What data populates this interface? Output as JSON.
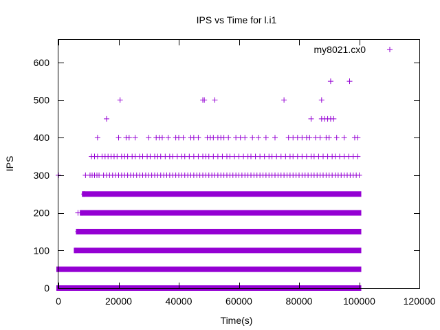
{
  "chart_data": {
    "type": "scatter",
    "title": "IPS vs Time for l.i1",
    "xlabel": "Time(s)",
    "ylabel": "IPS",
    "xlim": [
      0,
      120000
    ],
    "ylim": [
      0,
      660
    ],
    "x_ticks": [
      0,
      20000,
      40000,
      60000,
      80000,
      100000,
      120000
    ],
    "y_ticks": [
      0,
      100,
      200,
      300,
      400,
      500,
      600
    ],
    "legend_position": "top-right",
    "series": [
      {
        "name": "my8021.cx0",
        "color": "#9400d3",
        "marker": "+",
        "dense_bands": [
          {
            "y": 0,
            "x_start": 0,
            "x_end": 100000
          },
          {
            "y": 50,
            "x_start": 0,
            "x_end": 100000
          },
          {
            "y": 100,
            "x_start": 5800,
            "x_end": 100000
          },
          {
            "y": 150,
            "x_start": 6500,
            "x_end": 100000
          },
          {
            "y": 200,
            "x_start": 7800,
            "x_end": 100000
          },
          {
            "y": 250,
            "x_start": 8500,
            "x_end": 100000
          }
        ],
        "points": [
          [
            6500,
            200
          ],
          [
            6500,
            150
          ],
          [
            8500,
            250
          ],
          [
            0,
            300
          ],
          [
            9000,
            300
          ],
          [
            10500,
            300
          ],
          [
            11200,
            300
          ],
          [
            12000,
            300
          ],
          [
            12800,
            300
          ],
          [
            13500,
            300
          ],
          [
            15000,
            300
          ],
          [
            16000,
            300
          ],
          [
            17000,
            300
          ],
          [
            18000,
            300
          ],
          [
            19000,
            300
          ],
          [
            20000,
            300
          ],
          [
            21000,
            300
          ],
          [
            22000,
            300
          ],
          [
            23000,
            300
          ],
          [
            24000,
            300
          ],
          [
            25000,
            300
          ],
          [
            26000,
            300
          ],
          [
            27000,
            300
          ],
          [
            28000,
            300
          ],
          [
            29000,
            300
          ],
          [
            30000,
            300
          ],
          [
            31000,
            300
          ],
          [
            32000,
            300
          ],
          [
            33000,
            300
          ],
          [
            34000,
            300
          ],
          [
            35000,
            300
          ],
          [
            36000,
            300
          ],
          [
            37000,
            300
          ],
          [
            38000,
            300
          ],
          [
            39000,
            300
          ],
          [
            40000,
            300
          ],
          [
            41000,
            300
          ],
          [
            42000,
            300
          ],
          [
            43000,
            300
          ],
          [
            44000,
            300
          ],
          [
            45000,
            300
          ],
          [
            46000,
            300
          ],
          [
            47000,
            300
          ],
          [
            48000,
            300
          ],
          [
            49000,
            300
          ],
          [
            50000,
            300
          ],
          [
            51000,
            300
          ],
          [
            52000,
            300
          ],
          [
            53000,
            300
          ],
          [
            54000,
            300
          ],
          [
            55000,
            300
          ],
          [
            56000,
            300
          ],
          [
            57000,
            300
          ],
          [
            58000,
            300
          ],
          [
            59000,
            300
          ],
          [
            60000,
            300
          ],
          [
            61000,
            300
          ],
          [
            62000,
            300
          ],
          [
            63000,
            300
          ],
          [
            64000,
            300
          ],
          [
            65000,
            300
          ],
          [
            66000,
            300
          ],
          [
            67000,
            300
          ],
          [
            68000,
            300
          ],
          [
            69000,
            300
          ],
          [
            70000,
            300
          ],
          [
            71000,
            300
          ],
          [
            72000,
            300
          ],
          [
            73000,
            300
          ],
          [
            74000,
            300
          ],
          [
            75000,
            300
          ],
          [
            76000,
            300
          ],
          [
            77000,
            300
          ],
          [
            78000,
            300
          ],
          [
            79000,
            300
          ],
          [
            80000,
            300
          ],
          [
            81000,
            300
          ],
          [
            82000,
            300
          ],
          [
            83000,
            300
          ],
          [
            84000,
            300
          ],
          [
            85000,
            300
          ],
          [
            86000,
            300
          ],
          [
            87000,
            300
          ],
          [
            88000,
            300
          ],
          [
            89000,
            300
          ],
          [
            90000,
            300
          ],
          [
            91000,
            300
          ],
          [
            92000,
            300
          ],
          [
            93000,
            300
          ],
          [
            94000,
            300
          ],
          [
            95000,
            300
          ],
          [
            96000,
            300
          ],
          [
            97000,
            300
          ],
          [
            98000,
            300
          ],
          [
            99000,
            300
          ],
          [
            100000,
            300
          ],
          [
            11000,
            350
          ],
          [
            12000,
            350
          ],
          [
            13000,
            350
          ],
          [
            14500,
            350
          ],
          [
            15500,
            350
          ],
          [
            16500,
            350
          ],
          [
            17500,
            350
          ],
          [
            18500,
            350
          ],
          [
            19500,
            350
          ],
          [
            21000,
            350
          ],
          [
            22000,
            350
          ],
          [
            23000,
            350
          ],
          [
            24500,
            350
          ],
          [
            25500,
            350
          ],
          [
            27000,
            350
          ],
          [
            28000,
            350
          ],
          [
            29500,
            350
          ],
          [
            30500,
            350
          ],
          [
            32000,
            350
          ],
          [
            33000,
            350
          ],
          [
            34000,
            350
          ],
          [
            35500,
            350
          ],
          [
            37000,
            350
          ],
          [
            38000,
            350
          ],
          [
            39500,
            350
          ],
          [
            41000,
            350
          ],
          [
            42000,
            350
          ],
          [
            43500,
            350
          ],
          [
            45000,
            350
          ],
          [
            46500,
            350
          ],
          [
            48000,
            350
          ],
          [
            49000,
            350
          ],
          [
            50000,
            350
          ],
          [
            51500,
            350
          ],
          [
            53000,
            350
          ],
          [
            54500,
            350
          ],
          [
            56000,
            350
          ],
          [
            57000,
            350
          ],
          [
            58500,
            350
          ],
          [
            60000,
            350
          ],
          [
            61500,
            350
          ],
          [
            63000,
            350
          ],
          [
            64000,
            350
          ],
          [
            65500,
            350
          ],
          [
            67000,
            350
          ],
          [
            68500,
            350
          ],
          [
            70000,
            350
          ],
          [
            71000,
            350
          ],
          [
            72500,
            350
          ],
          [
            74000,
            350
          ],
          [
            75500,
            350
          ],
          [
            77000,
            350
          ],
          [
            78000,
            350
          ],
          [
            79500,
            350
          ],
          [
            81000,
            350
          ],
          [
            82500,
            350
          ],
          [
            84000,
            350
          ],
          [
            85000,
            350
          ],
          [
            86500,
            350
          ],
          [
            88000,
            350
          ],
          [
            89500,
            350
          ],
          [
            91000,
            350
          ],
          [
            92000,
            350
          ],
          [
            93500,
            350
          ],
          [
            95000,
            350
          ],
          [
            96500,
            350
          ],
          [
            98000,
            350
          ],
          [
            99500,
            350
          ],
          [
            13000,
            400
          ],
          [
            20000,
            400
          ],
          [
            22500,
            400
          ],
          [
            23500,
            400
          ],
          [
            25500,
            400
          ],
          [
            30000,
            400
          ],
          [
            32500,
            400
          ],
          [
            33500,
            400
          ],
          [
            34500,
            400
          ],
          [
            36500,
            400
          ],
          [
            39000,
            400
          ],
          [
            40000,
            400
          ],
          [
            41500,
            400
          ],
          [
            44000,
            400
          ],
          [
            45000,
            400
          ],
          [
            46500,
            400
          ],
          [
            49500,
            400
          ],
          [
            50500,
            400
          ],
          [
            51500,
            400
          ],
          [
            53000,
            400
          ],
          [
            54000,
            400
          ],
          [
            55000,
            400
          ],
          [
            56500,
            400
          ],
          [
            59000,
            400
          ],
          [
            60500,
            400
          ],
          [
            62000,
            400
          ],
          [
            64500,
            400
          ],
          [
            66500,
            400
          ],
          [
            69000,
            400
          ],
          [
            72000,
            400
          ],
          [
            76500,
            400
          ],
          [
            78000,
            400
          ],
          [
            79500,
            400
          ],
          [
            81000,
            400
          ],
          [
            82500,
            400
          ],
          [
            83500,
            400
          ],
          [
            85500,
            400
          ],
          [
            87000,
            400
          ],
          [
            89000,
            400
          ],
          [
            90000,
            400
          ],
          [
            92500,
            400
          ],
          [
            95000,
            400
          ],
          [
            98500,
            400
          ],
          [
            99500,
            400
          ],
          [
            16000,
            450
          ],
          [
            84000,
            450
          ],
          [
            87500,
            450
          ],
          [
            88500,
            450
          ],
          [
            89500,
            450
          ],
          [
            90500,
            450
          ],
          [
            91500,
            450
          ],
          [
            20500,
            500
          ],
          [
            48000,
            500
          ],
          [
            48500,
            500
          ],
          [
            52000,
            500
          ],
          [
            75000,
            500
          ],
          [
            87500,
            500
          ],
          [
            90500,
            550
          ],
          [
            96800,
            550
          ]
        ]
      }
    ]
  }
}
